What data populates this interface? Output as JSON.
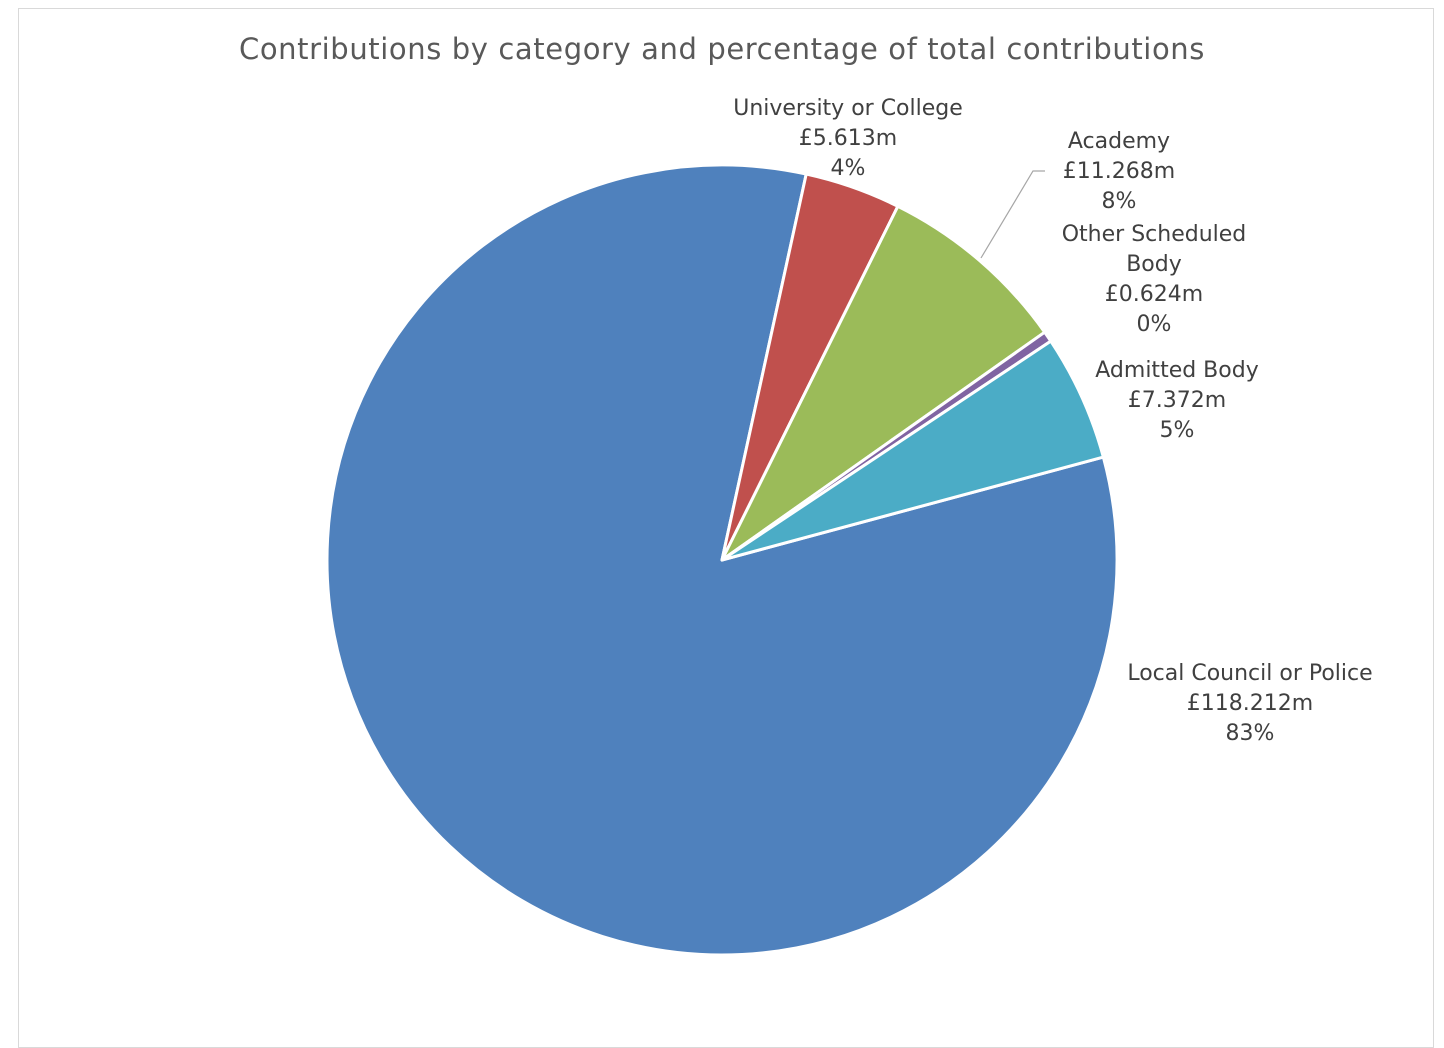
{
  "chart_data": {
    "type": "pie",
    "title": "Contributions by category and percentage of total contributions",
    "slices": [
      {
        "category": "Local Council or Police",
        "value": 118.212,
        "value_label": "£118.212m",
        "percent_label": "83%",
        "color": "#4F81BD"
      },
      {
        "category": "University or College",
        "value": 5.613,
        "value_label": "£5.613m",
        "percent_label": "4%",
        "color": "#C0504D"
      },
      {
        "category": "Academy",
        "value": 11.268,
        "value_label": "£11.268m",
        "percent_label": "8%",
        "color": "#9BBB59"
      },
      {
        "category": "Other Scheduled Body",
        "value": 0.624,
        "value_label": "£0.624m",
        "percent_label": "0%",
        "color": "#8064A2"
      },
      {
        "category": "Admitted Body",
        "value": 7.372,
        "value_label": "£7.372m",
        "percent_label": "5%",
        "color": "#4BACC6"
      }
    ]
  }
}
